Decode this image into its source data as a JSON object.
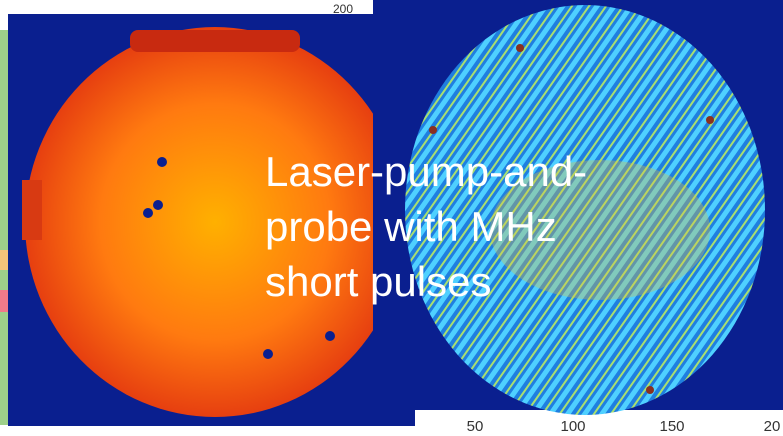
{
  "top_label": "200",
  "overlay_text": [
    "Laser-pump-and-",
    "probe with MHz",
    "short pulses"
  ],
  "x_axis_labels": [
    "50",
    "100",
    "150",
    "20"
  ]
}
